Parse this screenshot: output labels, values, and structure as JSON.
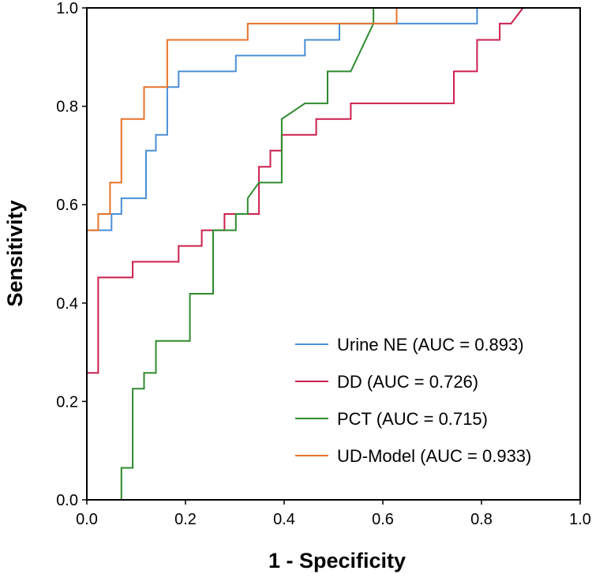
{
  "chart_data": {
    "type": "line",
    "title": "",
    "xlabel": "1 - Specificity",
    "ylabel": "Sensitivity",
    "xlim": [
      0,
      1
    ],
    "ylim": [
      0,
      1
    ],
    "xticks": [
      0.0,
      0.2,
      0.4,
      0.6,
      0.8,
      1.0
    ],
    "yticks": [
      0.0,
      0.2,
      0.4,
      0.6,
      0.8,
      1.0
    ],
    "xtick_labels": [
      "0.0",
      "0.2",
      "0.4",
      "0.6",
      "0.8",
      "1.0"
    ],
    "ytick_labels": [
      "0.0",
      "0.2",
      "0.4",
      "0.6",
      "0.8",
      "1.0"
    ],
    "grid": false,
    "legend_position": "bottom-right",
    "series": [
      {
        "name": "Urine NE (AUC = 0.893)",
        "color": "#4a8fd6",
        "points": [
          [
            0,
            0
          ],
          [
            0,
            0.548
          ],
          [
            0.05,
            0.548
          ],
          [
            0.05,
            0.581
          ],
          [
            0.07,
            0.581
          ],
          [
            0.07,
            0.613
          ],
          [
            0.12,
            0.613
          ],
          [
            0.12,
            0.71
          ],
          [
            0.14,
            0.71
          ],
          [
            0.14,
            0.742
          ],
          [
            0.163,
            0.742
          ],
          [
            0.163,
            0.839
          ],
          [
            0.186,
            0.839
          ],
          [
            0.186,
            0.871
          ],
          [
            0.302,
            0.871
          ],
          [
            0.302,
            0.903
          ],
          [
            0.442,
            0.903
          ],
          [
            0.442,
            0.935
          ],
          [
            0.512,
            0.935
          ],
          [
            0.512,
            0.968
          ],
          [
            0.791,
            0.968
          ],
          [
            0.791,
            1
          ],
          [
            1,
            1
          ]
        ]
      },
      {
        "name": "DD (AUC = 0.726)",
        "color": "#cc1f4e",
        "points": [
          [
            0,
            0
          ],
          [
            0,
            0.258
          ],
          [
            0.023,
            0.258
          ],
          [
            0.023,
            0.452
          ],
          [
            0.093,
            0.452
          ],
          [
            0.093,
            0.484
          ],
          [
            0.186,
            0.484
          ],
          [
            0.186,
            0.516
          ],
          [
            0.233,
            0.516
          ],
          [
            0.233,
            0.548
          ],
          [
            0.279,
            0.548
          ],
          [
            0.279,
            0.581
          ],
          [
            0.349,
            0.581
          ],
          [
            0.349,
            0.677
          ],
          [
            0.372,
            0.677
          ],
          [
            0.372,
            0.71
          ],
          [
            0.395,
            0.71
          ],
          [
            0.395,
            0.742
          ],
          [
            0.465,
            0.742
          ],
          [
            0.465,
            0.774
          ],
          [
            0.535,
            0.774
          ],
          [
            0.535,
            0.806
          ],
          [
            0.744,
            0.806
          ],
          [
            0.744,
            0.871
          ],
          [
            0.791,
            0.871
          ],
          [
            0.791,
            0.903
          ],
          [
            0.791,
            0.935
          ],
          [
            0.837,
            0.935
          ],
          [
            0.837,
            0.968
          ],
          [
            0.86,
            0.968
          ],
          [
            0.884,
            1
          ],
          [
            1,
            1
          ]
        ]
      },
      {
        "name": "PCT (AUC = 0.715)",
        "color": "#2e8b2e",
        "points": [
          [
            0,
            0
          ],
          [
            0.07,
            0
          ],
          [
            0.07,
            0.065
          ],
          [
            0.093,
            0.065
          ],
          [
            0.093,
            0.226
          ],
          [
            0.116,
            0.226
          ],
          [
            0.116,
            0.258
          ],
          [
            0.14,
            0.258
          ],
          [
            0.14,
            0.323
          ],
          [
            0.209,
            0.323
          ],
          [
            0.209,
            0.419
          ],
          [
            0.256,
            0.419
          ],
          [
            0.256,
            0.548
          ],
          [
            0.302,
            0.548
          ],
          [
            0.302,
            0.581
          ],
          [
            0.326,
            0.581
          ],
          [
            0.326,
            0.613
          ],
          [
            0.349,
            0.645
          ],
          [
            0.395,
            0.645
          ],
          [
            0.395,
            0.774
          ],
          [
            0.442,
            0.806
          ],
          [
            0.488,
            0.806
          ],
          [
            0.488,
            0.871
          ],
          [
            0.535,
            0.871
          ],
          [
            0.581,
            0.968
          ],
          [
            0.581,
            1
          ],
          [
            1,
            1
          ]
        ]
      },
      {
        "name": "UD-Model (AUC = 0.933)",
        "color": "#e8732a",
        "points": [
          [
            0,
            0
          ],
          [
            0,
            0.548
          ],
          [
            0.023,
            0.548
          ],
          [
            0.023,
            0.581
          ],
          [
            0.047,
            0.581
          ],
          [
            0.047,
            0.645
          ],
          [
            0.07,
            0.645
          ],
          [
            0.07,
            0.774
          ],
          [
            0.116,
            0.774
          ],
          [
            0.116,
            0.839
          ],
          [
            0.163,
            0.839
          ],
          [
            0.163,
            0.935
          ],
          [
            0.326,
            0.935
          ],
          [
            0.326,
            0.968
          ],
          [
            0.628,
            0.968
          ],
          [
            0.628,
            1
          ],
          [
            1,
            1
          ]
        ]
      }
    ]
  }
}
